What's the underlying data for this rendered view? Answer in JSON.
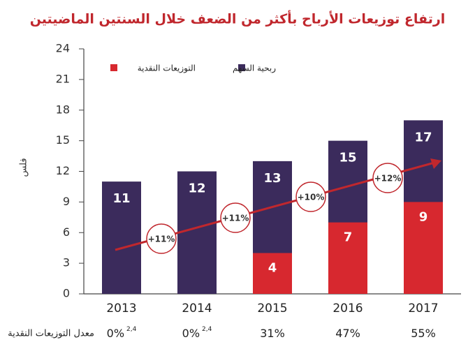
{
  "chart_data": {
    "type": "bar",
    "title": "ارتفاع توزيعات الأرباح بأكثر من الضعف خلال السنتين الماضيتين",
    "y_label": "فلس",
    "categories": [
      "2013",
      "2014",
      "2015",
      "2016",
      "2017"
    ],
    "series": [
      {
        "name": "ربحية السهم",
        "color": "#3b2b5c",
        "values": [
          11,
          12,
          13,
          15,
          17
        ]
      },
      {
        "name": "التوزيعات النقدية",
        "color": "#d7282f",
        "values": [
          null,
          null,
          4,
          7,
          9
        ]
      }
    ],
    "ylim": [
      0,
      24
    ],
    "yticks": [
      0,
      3,
      6,
      9,
      12,
      15,
      18,
      21,
      24
    ],
    "growth_annotations": [
      "+11%",
      "+11%",
      "+10%",
      "+12%"
    ],
    "payout": {
      "label": "معدل التوزيعات النقدية",
      "values": [
        0,
        0,
        31,
        47,
        55
      ],
      "value_labels": [
        "0%",
        "0%",
        "31%",
        "47%",
        "55%"
      ],
      "notes": [
        "2,4",
        "2,4",
        null,
        null,
        null
      ]
    }
  }
}
